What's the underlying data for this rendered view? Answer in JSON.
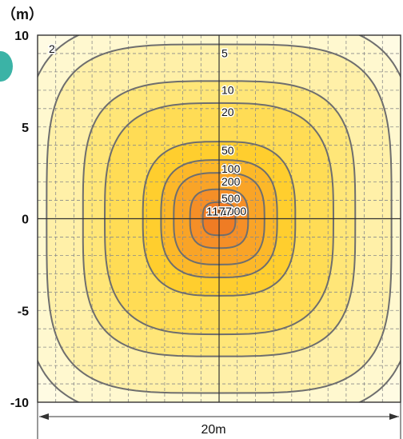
{
  "chart_data": {
    "type": "contour",
    "unit_label": "（m）",
    "scale_label": "20m",
    "x_range": [
      -10,
      10
    ],
    "y_range": [
      -10,
      10
    ],
    "y_ticks": [
      {
        "value": 10,
        "label": "10"
      },
      {
        "value": 5,
        "label": "5"
      },
      {
        "value": 0,
        "label": "0"
      },
      {
        "value": -5,
        "label": "-5"
      },
      {
        "value": -10,
        "label": "-10"
      }
    ],
    "grid": true,
    "grid_step": 1,
    "center_value": "1177",
    "contour_levels": [
      {
        "value": 2,
        "label": "2",
        "halfwidth": 10.8,
        "power": 4.0,
        "fill": "#FFF8CF"
      },
      {
        "value": 5,
        "label": "5",
        "halfwidth": 9.5,
        "power": 4.0,
        "fill": "#FFF0A8"
      },
      {
        "value": 10,
        "label": "10",
        "halfwidth": 7.5,
        "power": 3.6,
        "fill": "#FFE678"
      },
      {
        "value": 20,
        "label": "20",
        "halfwidth": 6.3,
        "power": 3.2,
        "fill": "#FFDC55"
      },
      {
        "value": 50,
        "label": "50",
        "halfwidth": 4.2,
        "power": 3.0,
        "fill": "#FFCE2E"
      },
      {
        "value": 100,
        "label": "100",
        "halfwidth": 3.2,
        "power": 3.0,
        "fill": "#FCB829"
      },
      {
        "value": 200,
        "label": "200",
        "halfwidth": 2.5,
        "power": 3.0,
        "fill": "#F9A427"
      },
      {
        "value": 500,
        "label": "500",
        "halfwidth": 1.6,
        "power": 3.0,
        "fill": "#F58F27"
      },
      {
        "value": 1000,
        "label": "1000",
        "halfwidth": 0.9,
        "power": 3.0,
        "fill": "#EF7C24"
      }
    ],
    "colors": {
      "background": "#FFFBE3",
      "contour_line": "#6E6E6E",
      "grid_line": "#8A8A8A",
      "axis_line": "#333333",
      "text": "#111111"
    }
  }
}
